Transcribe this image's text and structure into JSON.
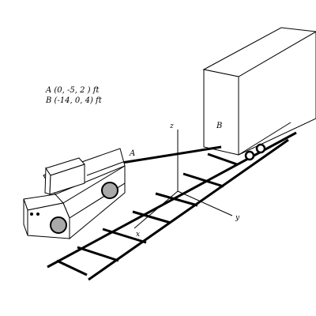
{
  "given": {
    "line_a": "A (0, -5, 2 ) ft",
    "line_b": "B (-14, 0, 4) ft"
  },
  "points": {
    "a": "A",
    "b": "B"
  },
  "axes": {
    "x": "x",
    "y": "y",
    "z": "z"
  },
  "colors": {
    "stroke": "#000000",
    "wheel_fill": "#a9a9a9",
    "background": "#ffffff"
  }
}
